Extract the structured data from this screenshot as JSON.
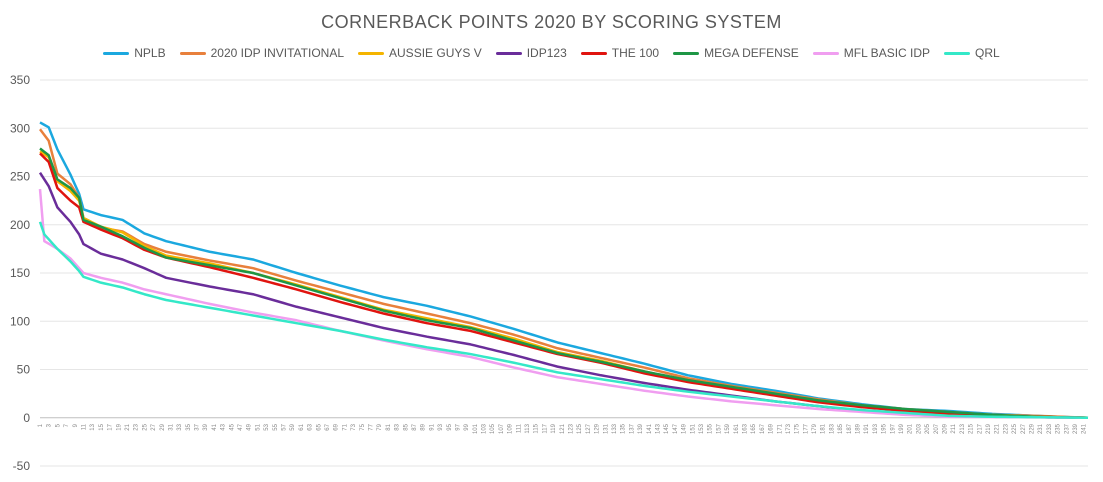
{
  "chart_data": {
    "type": "line",
    "title": "CORNERBACK POINTS 2020 BY SCORING SYSTEM",
    "xlabel": "",
    "ylabel": "",
    "ylim": [
      -50,
      350
    ],
    "yticks": [
      -50,
      0,
      50,
      100,
      150,
      200,
      250,
      300,
      350
    ],
    "x_count": 242,
    "x_tick_step": 2,
    "grid": true,
    "legend_position": "top",
    "note": "",
    "series": [
      {
        "name": "NPLB",
        "color": "#1ba8df",
        "anchors": [
          [
            1,
            306
          ],
          [
            3,
            301
          ],
          [
            5,
            278
          ],
          [
            8,
            252
          ],
          [
            10,
            232
          ],
          [
            11,
            216
          ],
          [
            15,
            210
          ],
          [
            20,
            205
          ],
          [
            25,
            191
          ],
          [
            30,
            183
          ],
          [
            40,
            172
          ],
          [
            50,
            164
          ],
          [
            60,
            150
          ],
          [
            70,
            137
          ],
          [
            80,
            125
          ],
          [
            90,
            116
          ],
          [
            100,
            105
          ],
          [
            110,
            92
          ],
          [
            120,
            78
          ],
          [
            130,
            67
          ],
          [
            140,
            56
          ],
          [
            150,
            44
          ],
          [
            160,
            35
          ],
          [
            170,
            28
          ],
          [
            180,
            20
          ],
          [
            190,
            14
          ],
          [
            200,
            9
          ],
          [
            210,
            7
          ],
          [
            220,
            4
          ],
          [
            230,
            2
          ],
          [
            235,
            1
          ],
          [
            242,
            0
          ]
        ]
      },
      {
        "name": "2020 IDP INVITATIONAL",
        "color": "#e8803c",
        "anchors": [
          [
            1,
            299
          ],
          [
            3,
            287
          ],
          [
            5,
            253
          ],
          [
            8,
            242
          ],
          [
            10,
            228
          ],
          [
            11,
            207
          ],
          [
            15,
            197
          ],
          [
            20,
            193
          ],
          [
            25,
            180
          ],
          [
            30,
            172
          ],
          [
            40,
            163
          ],
          [
            50,
            155
          ],
          [
            60,
            142
          ],
          [
            70,
            130
          ],
          [
            80,
            118
          ],
          [
            90,
            108
          ],
          [
            100,
            98
          ],
          [
            110,
            86
          ],
          [
            120,
            72
          ],
          [
            130,
            62
          ],
          [
            140,
            52
          ],
          [
            150,
            41
          ],
          [
            160,
            33
          ],
          [
            170,
            26
          ],
          [
            180,
            19
          ],
          [
            190,
            13
          ],
          [
            200,
            9
          ],
          [
            210,
            6
          ],
          [
            220,
            3
          ],
          [
            230,
            2
          ],
          [
            242,
            0
          ]
        ]
      },
      {
        "name": "AUSSIE GUYS V",
        "color": "#f4b400",
        "anchors": [
          [
            1,
            276
          ],
          [
            3,
            270
          ],
          [
            5,
            245
          ],
          [
            8,
            235
          ],
          [
            10,
            225
          ],
          [
            11,
            207
          ],
          [
            15,
            198
          ],
          [
            20,
            192
          ],
          [
            25,
            178
          ],
          [
            30,
            168
          ],
          [
            40,
            160
          ],
          [
            50,
            150
          ],
          [
            60,
            138
          ],
          [
            70,
            125
          ],
          [
            80,
            112
          ],
          [
            90,
            103
          ],
          [
            100,
            94
          ],
          [
            110,
            82
          ],
          [
            120,
            68
          ],
          [
            130,
            59
          ],
          [
            140,
            48
          ],
          [
            150,
            38
          ],
          [
            160,
            31
          ],
          [
            170,
            24
          ],
          [
            180,
            17
          ],
          [
            190,
            12
          ],
          [
            200,
            8
          ],
          [
            210,
            5
          ],
          [
            220,
            3
          ],
          [
            230,
            1
          ],
          [
            242,
            0
          ]
        ]
      },
      {
        "name": "IDP123",
        "color": "#6a2d9a",
        "anchors": [
          [
            1,
            254
          ],
          [
            3,
            240
          ],
          [
            5,
            218
          ],
          [
            8,
            203
          ],
          [
            10,
            190
          ],
          [
            11,
            180
          ],
          [
            15,
            170
          ],
          [
            20,
            164
          ],
          [
            25,
            155
          ],
          [
            30,
            145
          ],
          [
            40,
            136
          ],
          [
            50,
            128
          ],
          [
            60,
            115
          ],
          [
            70,
            104
          ],
          [
            80,
            93
          ],
          [
            90,
            84
          ],
          [
            100,
            76
          ],
          [
            110,
            65
          ],
          [
            120,
            53
          ],
          [
            130,
            44
          ],
          [
            140,
            36
          ],
          [
            150,
            29
          ],
          [
            160,
            23
          ],
          [
            170,
            17
          ],
          [
            180,
            12
          ],
          [
            190,
            7
          ],
          [
            200,
            4
          ],
          [
            210,
            2
          ],
          [
            220,
            1
          ],
          [
            242,
            0
          ]
        ]
      },
      {
        "name": "THE 100",
        "color": "#e0140f",
        "anchors": [
          [
            1,
            274
          ],
          [
            3,
            265
          ],
          [
            5,
            238
          ],
          [
            8,
            225
          ],
          [
            10,
            218
          ],
          [
            11,
            203
          ],
          [
            15,
            195
          ],
          [
            20,
            186
          ],
          [
            25,
            174
          ],
          [
            30,
            166
          ],
          [
            40,
            156
          ],
          [
            50,
            145
          ],
          [
            60,
            133
          ],
          [
            70,
            120
          ],
          [
            80,
            108
          ],
          [
            90,
            98
          ],
          [
            100,
            90
          ],
          [
            110,
            78
          ],
          [
            120,
            66
          ],
          [
            130,
            57
          ],
          [
            140,
            46
          ],
          [
            150,
            37
          ],
          [
            160,
            30
          ],
          [
            170,
            23
          ],
          [
            180,
            16
          ],
          [
            190,
            11
          ],
          [
            200,
            7
          ],
          [
            210,
            4
          ],
          [
            220,
            2
          ],
          [
            230,
            1
          ],
          [
            242,
            0
          ]
        ]
      },
      {
        "name": "MEGA DEFENSE",
        "color": "#1e9645",
        "anchors": [
          [
            1,
            279
          ],
          [
            3,
            272
          ],
          [
            5,
            247
          ],
          [
            8,
            238
          ],
          [
            10,
            228
          ],
          [
            11,
            205
          ],
          [
            15,
            198
          ],
          [
            20,
            188
          ],
          [
            25,
            176
          ],
          [
            30,
            166
          ],
          [
            40,
            158
          ],
          [
            50,
            150
          ],
          [
            60,
            137
          ],
          [
            70,
            124
          ],
          [
            80,
            111
          ],
          [
            90,
            101
          ],
          [
            100,
            93
          ],
          [
            110,
            80
          ],
          [
            120,
            67
          ],
          [
            130,
            58
          ],
          [
            140,
            48
          ],
          [
            150,
            39
          ],
          [
            160,
            32
          ],
          [
            170,
            25
          ],
          [
            180,
            18
          ],
          [
            190,
            13
          ],
          [
            200,
            9
          ],
          [
            210,
            6
          ],
          [
            220,
            3
          ],
          [
            230,
            1
          ],
          [
            242,
            0
          ]
        ]
      },
      {
        "name": "MFL BASIC IDP",
        "color": "#f09ef0",
        "anchors": [
          [
            1,
            237
          ],
          [
            2,
            183
          ],
          [
            5,
            175
          ],
          [
            8,
            165
          ],
          [
            10,
            155
          ],
          [
            11,
            150
          ],
          [
            15,
            145
          ],
          [
            20,
            140
          ],
          [
            25,
            133
          ],
          [
            30,
            128
          ],
          [
            40,
            118
          ],
          [
            50,
            109
          ],
          [
            60,
            101
          ],
          [
            70,
            90
          ],
          [
            80,
            80
          ],
          [
            90,
            71
          ],
          [
            100,
            63
          ],
          [
            110,
            52
          ],
          [
            120,
            42
          ],
          [
            130,
            35
          ],
          [
            140,
            28
          ],
          [
            150,
            22
          ],
          [
            160,
            17
          ],
          [
            170,
            13
          ],
          [
            180,
            9
          ],
          [
            190,
            6
          ],
          [
            200,
            3
          ],
          [
            210,
            1
          ],
          [
            242,
            0
          ]
        ]
      },
      {
        "name": "QRL",
        "color": "#34e8c8",
        "anchors": [
          [
            1,
            203
          ],
          [
            2,
            190
          ],
          [
            5,
            175
          ],
          [
            8,
            162
          ],
          [
            10,
            152
          ],
          [
            11,
            146
          ],
          [
            15,
            140
          ],
          [
            20,
            135
          ],
          [
            25,
            128
          ],
          [
            30,
            122
          ],
          [
            40,
            114
          ],
          [
            50,
            106
          ],
          [
            60,
            98
          ],
          [
            70,
            90
          ],
          [
            80,
            81
          ],
          [
            90,
            73
          ],
          [
            100,
            66
          ],
          [
            110,
            57
          ],
          [
            120,
            47
          ],
          [
            130,
            40
          ],
          [
            140,
            33
          ],
          [
            150,
            27
          ],
          [
            160,
            22
          ],
          [
            170,
            17
          ],
          [
            180,
            12
          ],
          [
            190,
            8
          ],
          [
            200,
            5
          ],
          [
            210,
            2
          ],
          [
            220,
            1
          ],
          [
            242,
            0
          ]
        ]
      }
    ]
  }
}
